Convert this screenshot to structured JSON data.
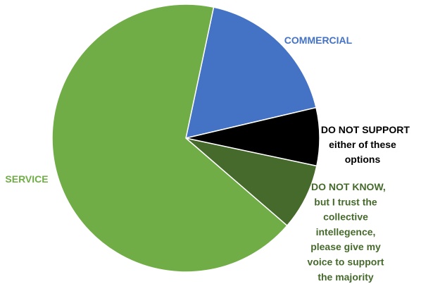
{
  "chart_data": {
    "type": "pie",
    "slices": [
      {
        "label_lines": [
          "COMMERCIAL"
        ],
        "value": 18,
        "color": "#4472C4",
        "label_color": "#4472C4"
      },
      {
        "label_lines": [
          "I DO NOT SUPPORT",
          "either of these",
          "options"
        ],
        "value": 7,
        "color": "#000000",
        "label_color": "#000000"
      },
      {
        "label_lines": [
          "I DO NOT KNOW,",
          "but I trust the",
          "collective",
          "intellegence,",
          "please give my",
          "voice to support",
          "the majority"
        ],
        "value": 8,
        "color": "#456A2C",
        "label_color": "#456A2C"
      },
      {
        "label_lines": [
          "SERVICE"
        ],
        "value": 67,
        "color": "#70AD47",
        "label_color": "#70AD47"
      }
    ],
    "start_angle_deg": 12
  }
}
